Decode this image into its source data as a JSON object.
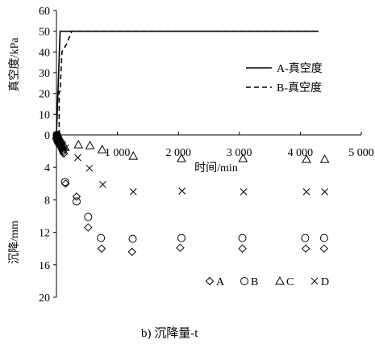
{
  "caption": "b) 沉降量-t",
  "chart_data": [
    {
      "type": "line",
      "ylabel": "真空度/kPa",
      "xlim": [
        0,
        5000
      ],
      "ylim": [
        0,
        60
      ],
      "yticks": [
        "0",
        "10",
        "20",
        "30",
        "40",
        "50",
        "60"
      ],
      "ytick_values": [
        0,
        10,
        20,
        30,
        40,
        50,
        60
      ],
      "legend_position": "right",
      "grid": false,
      "series": [
        {
          "name": "A-真空度",
          "style": "solid",
          "x": [
            0,
            60,
            4300
          ],
          "y": [
            0,
            50,
            50
          ]
        },
        {
          "name": "B-真空度",
          "style": "dashed",
          "x": [
            45,
            45,
            60,
            90,
            170,
            250,
            4300
          ],
          "y": [
            0,
            21,
            21,
            40,
            44,
            50,
            50
          ]
        }
      ]
    },
    {
      "type": "scatter",
      "xlabel": "时间/min",
      "ylabel": "沉降/mm",
      "xlim": [
        0,
        5000
      ],
      "ylim": [
        0,
        20
      ],
      "y_inverted": true,
      "xticks": [
        "0",
        "1 000",
        "2 000",
        "3 000",
        "4 000",
        "5 000"
      ],
      "xtick_values": [
        0,
        1000,
        2000,
        3000,
        4000,
        5000
      ],
      "yticks": [
        "0",
        "4",
        "8",
        "12",
        "16",
        "20"
      ],
      "ytick_values": [
        0,
        4,
        8,
        12,
        16,
        20
      ],
      "legend_position": "bottom-right",
      "grid": false,
      "series": [
        {
          "name": "A",
          "marker": "diamond",
          "x": [
            5,
            10,
            15,
            20,
            25,
            30,
            35,
            40,
            45,
            50,
            55,
            60,
            70,
            80,
            90,
            100,
            110,
            120,
            150,
            330,
            520,
            740,
            1240,
            2030,
            3050,
            4090,
            4390
          ],
          "y": [
            0.0,
            0.1,
            0.2,
            0.3,
            0.4,
            0.5,
            0.6,
            0.7,
            0.8,
            0.9,
            1.0,
            1.1,
            1.3,
            1.5,
            1.7,
            1.9,
            2.1,
            2.3,
            6.0,
            7.6,
            11.4,
            14.0,
            14.4,
            13.9,
            14.0,
            14.0,
            14.0
          ]
        },
        {
          "name": "B",
          "marker": "circle",
          "x": [
            5,
            10,
            15,
            20,
            25,
            30,
            35,
            40,
            45,
            50,
            60,
            70,
            80,
            90,
            100,
            140,
            330,
            520,
            730,
            1250,
            2050,
            3050,
            4080,
            4390
          ],
          "y": [
            0.0,
            0.1,
            0.2,
            0.3,
            0.4,
            0.5,
            0.6,
            0.7,
            0.8,
            0.9,
            1.0,
            1.2,
            1.4,
            1.6,
            1.8,
            5.8,
            8.2,
            10.1,
            12.7,
            12.8,
            12.7,
            12.7,
            12.7,
            12.7
          ]
        },
        {
          "name": "C",
          "marker": "triangle",
          "x": [
            5,
            10,
            15,
            20,
            25,
            30,
            35,
            40,
            50,
            60,
            70,
            80,
            90,
            100,
            140,
            360,
            550,
            750,
            1260,
            2050,
            3060,
            4100,
            4400
          ],
          "y": [
            0.0,
            0.1,
            0.2,
            0.3,
            0.4,
            0.5,
            0.6,
            0.7,
            0.8,
            0.9,
            1.0,
            1.1,
            1.2,
            1.3,
            1.5,
            1.2,
            1.3,
            1.8,
            2.6,
            2.9,
            2.9,
            3.0,
            3.0
          ]
        },
        {
          "name": "D",
          "marker": "x",
          "x": [
            5,
            10,
            15,
            20,
            25,
            30,
            35,
            40,
            50,
            60,
            70,
            80,
            90,
            100,
            150,
            350,
            540,
            760,
            1260,
            2060,
            3070,
            4100,
            4400
          ],
          "y": [
            0.0,
            0.1,
            0.2,
            0.3,
            0.4,
            0.5,
            0.6,
            0.7,
            0.8,
            0.9,
            1.0,
            1.1,
            1.2,
            1.3,
            1.6,
            2.8,
            4.1,
            6.1,
            7.0,
            6.9,
            7.0,
            7.0,
            7.0
          ]
        }
      ]
    }
  ]
}
